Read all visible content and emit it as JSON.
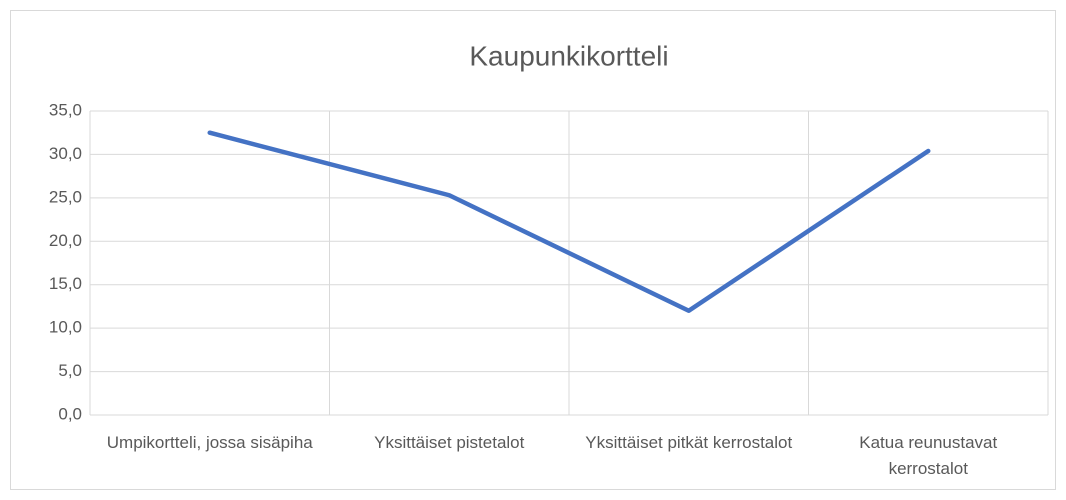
{
  "chart_data": {
    "type": "line",
    "title": "Kaupunkikortteli",
    "categories": [
      "Umpikortteli, jossa sisäpiha",
      "Yksittäiset pistetalot",
      "Yksittäiset pitkät kerrostalot",
      "Katua reunustavat kerrostalot"
    ],
    "values": [
      32.5,
      25.3,
      12.0,
      30.4
    ],
    "color": "#4472c4",
    "ylim": [
      0,
      35
    ],
    "yticks": [
      {
        "value": 0,
        "label": "0,0"
      },
      {
        "value": 5,
        "label": "5,0"
      },
      {
        "value": 10,
        "label": "10,0"
      },
      {
        "value": 15,
        "label": "15,0"
      },
      {
        "value": 20,
        "label": "20,0"
      },
      {
        "value": 25,
        "label": "25,0"
      },
      {
        "value": 30,
        "label": "30,0"
      },
      {
        "value": 35,
        "label": "35,0"
      }
    ],
    "grid": true
  }
}
